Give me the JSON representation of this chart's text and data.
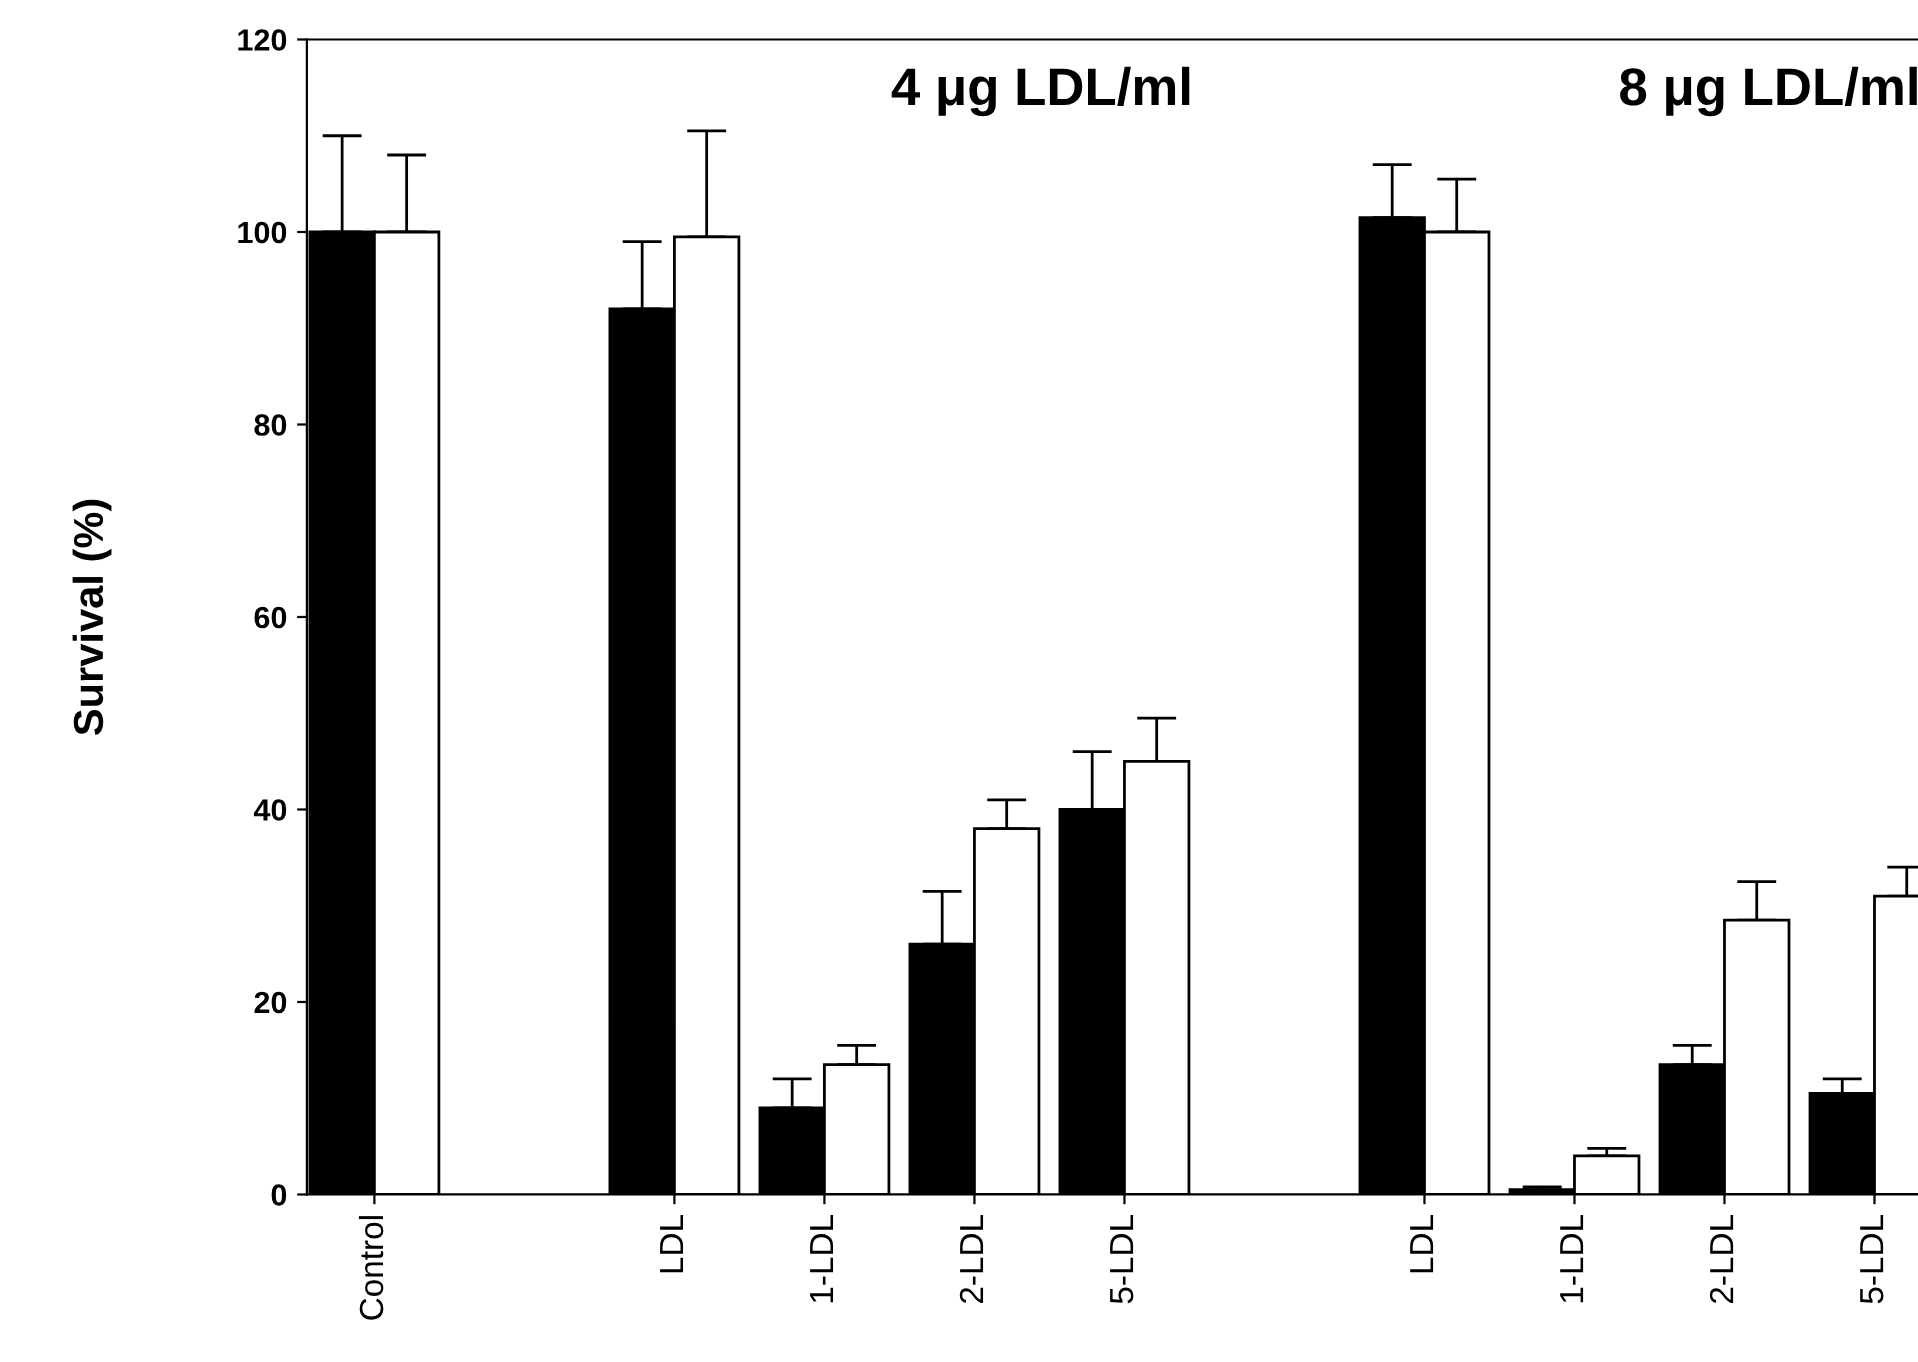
{
  "chart_data": {
    "type": "bar",
    "ylabel": "Survival (%)",
    "categories": [
      "Control",
      null,
      "LDL",
      "1-LDL",
      "2-LDL",
      "5-LDL",
      null,
      "LDL",
      "1-LDL",
      "2-LDL",
      "5-LDL"
    ],
    "series": [
      {
        "color": "#000000",
        "values": [
          100,
          null,
          92,
          9,
          26,
          40,
          null,
          101.5,
          0.5,
          13.5,
          10.5
        ],
        "errors": [
          [
            100,
            110
          ],
          null,
          [
            92,
            99
          ],
          [
            9,
            12
          ],
          [
            26,
            31.5
          ],
          [
            40,
            46
          ],
          null,
          [
            101.5,
            107
          ],
          [
            0.5,
            0.8
          ],
          [
            13.5,
            15.5
          ],
          [
            10.5,
            12
          ]
        ]
      },
      {
        "color": "#ffffff",
        "values": [
          100,
          null,
          99.5,
          13.5,
          38,
          45,
          null,
          100,
          4,
          28.5,
          31
        ],
        "errors": [
          [
            100,
            108
          ],
          null,
          [
            99.5,
            110.5
          ],
          [
            13.5,
            15.5
          ],
          [
            38,
            41
          ],
          [
            45,
            49.5
          ],
          null,
          [
            100,
            105.5
          ],
          [
            4,
            4.8
          ],
          [
            28.5,
            32.5
          ],
          [
            31,
            34
          ]
        ]
      }
    ],
    "annotations": [
      "4 μg LDL/ml",
      "8 μg LDL/ml"
    ],
    "ylim": [
      0,
      120
    ],
    "yticks": [
      0,
      20,
      40,
      60,
      80,
      100,
      120
    ],
    "grid": false,
    "legend": false
  }
}
